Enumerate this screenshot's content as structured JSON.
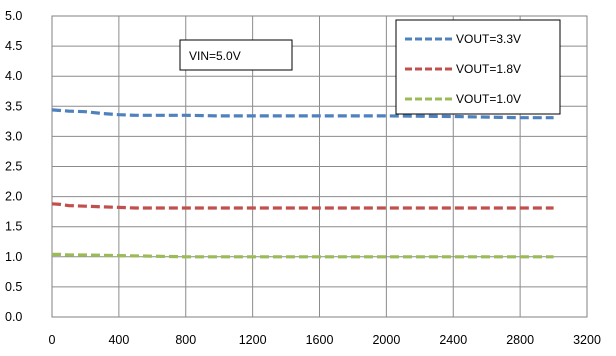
{
  "chart_data": {
    "type": "line",
    "title": "",
    "xlabel": "",
    "ylabel": "",
    "xlim": [
      0,
      3200
    ],
    "ylim": [
      0.0,
      5.0
    ],
    "xticks": [
      "0",
      "400",
      "800",
      "1200",
      "1600",
      "2000",
      "2400",
      "2800",
      "3200"
    ],
    "yticks": [
      "0.0",
      "0.5",
      "1.0",
      "1.5",
      "2.0",
      "2.5",
      "3.0",
      "3.5",
      "4.0",
      "4.5",
      "5.0"
    ],
    "grid": true,
    "legend_position": "top-right",
    "annotation": "VIN=5.0V",
    "series": [
      {
        "name": "VOUT=3.3V",
        "color": "#4f81bd",
        "x": [
          0,
          50,
          100,
          200,
          300,
          400,
          500,
          600,
          800,
          1000,
          1200,
          1600,
          2000,
          2400,
          2800,
          3000
        ],
        "y": [
          3.44,
          3.43,
          3.42,
          3.41,
          3.38,
          3.36,
          3.35,
          3.35,
          3.35,
          3.34,
          3.34,
          3.34,
          3.34,
          3.33,
          3.31,
          3.31
        ]
      },
      {
        "name": "VOUT=1.8V",
        "color": "#c0504d",
        "x": [
          0,
          50,
          100,
          200,
          300,
          400,
          500,
          600,
          800,
          1200,
          1600,
          2000,
          2400,
          2800,
          3000
        ],
        "y": [
          1.88,
          1.87,
          1.85,
          1.84,
          1.83,
          1.82,
          1.81,
          1.81,
          1.81,
          1.81,
          1.81,
          1.81,
          1.81,
          1.81,
          1.81
        ]
      },
      {
        "name": "VOUT=1.0V",
        "color": "#9bbb59",
        "x": [
          0,
          50,
          100,
          200,
          400,
          600,
          800,
          1200,
          1600,
          2000,
          2400,
          2800,
          3000
        ],
        "y": [
          1.04,
          1.04,
          1.03,
          1.03,
          1.02,
          1.01,
          1.0,
          1.0,
          1.0,
          1.0,
          1.0,
          1.0,
          1.0
        ]
      }
    ]
  }
}
